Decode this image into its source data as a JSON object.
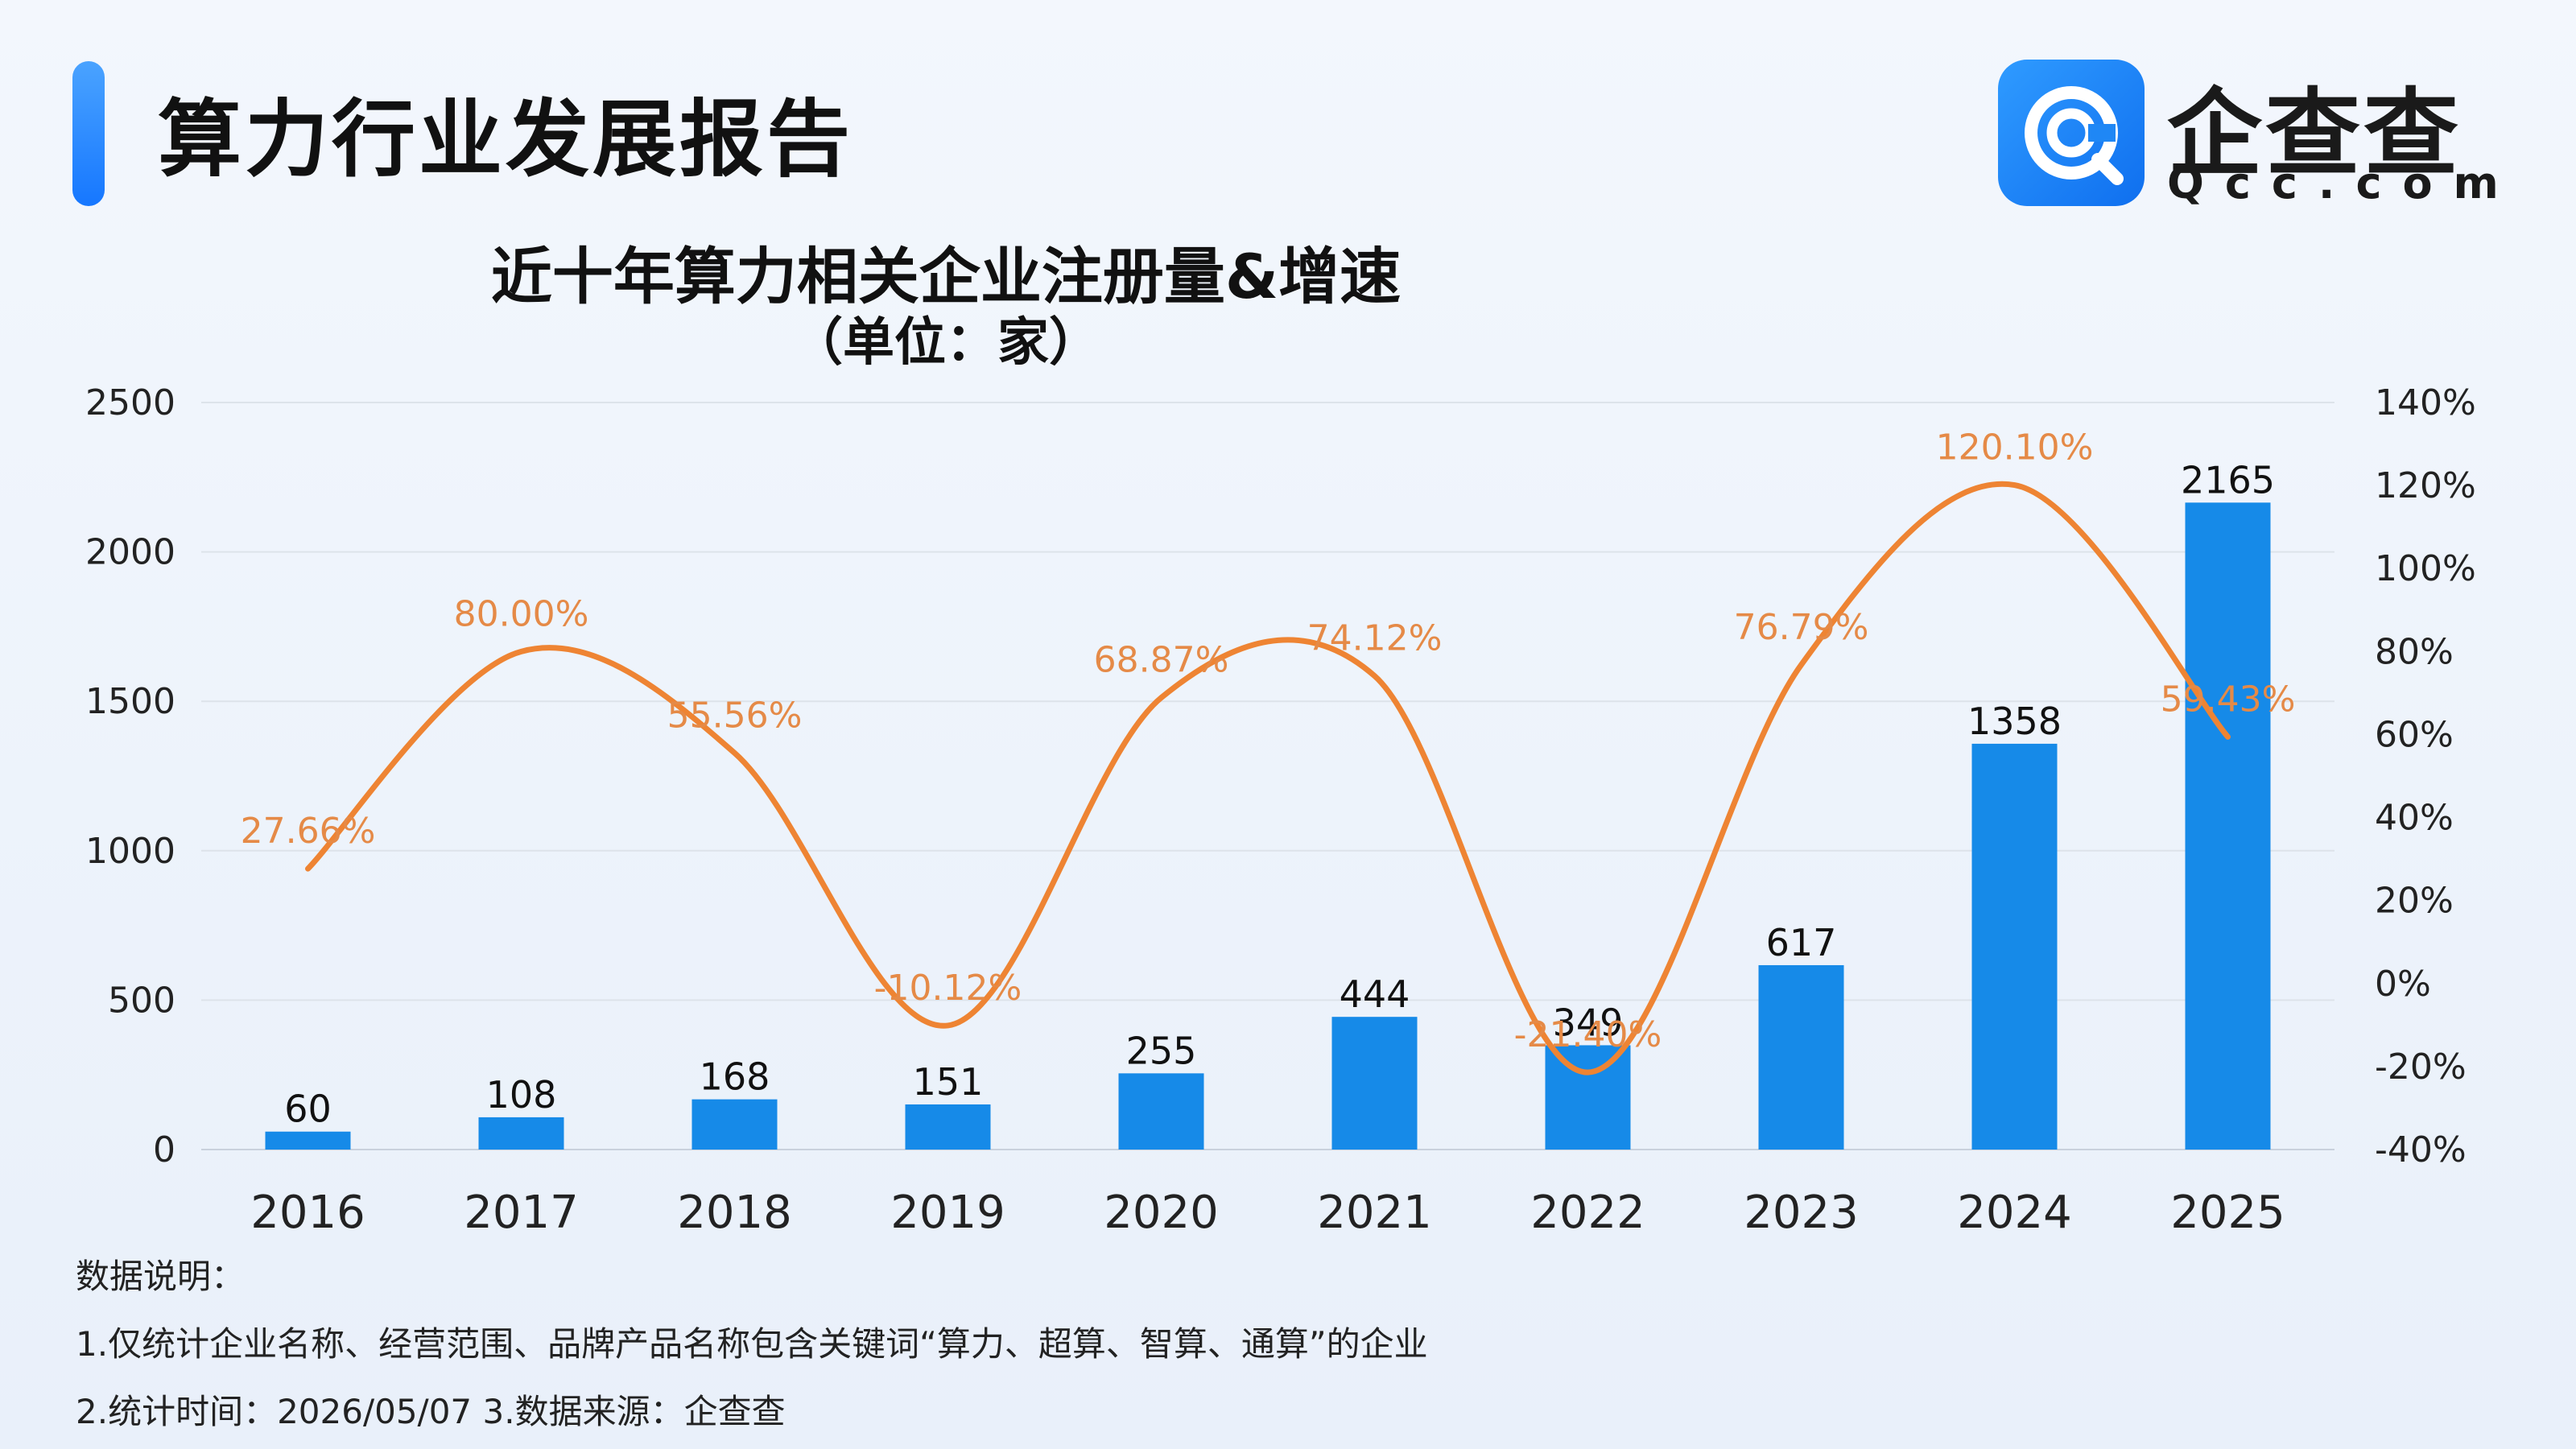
{
  "header": {
    "title": "算力行业发展报告",
    "logo": {
      "name": "企查查",
      "domain": "Qcc.com",
      "icon": "qcc-logo-icon",
      "color": "#1677ff"
    }
  },
  "chart_data": {
    "type": "bar",
    "title": "近十年算力相关企业注册量&增速",
    "subtitle": "（单位：家）",
    "categories": [
      "2016",
      "2017",
      "2018",
      "2019",
      "2020",
      "2021",
      "2022",
      "2023",
      "2024",
      "2025"
    ],
    "series": [
      {
        "type": "bar",
        "axis": "left",
        "color": "#168ae8",
        "values": [
          60,
          108,
          168,
          151,
          255,
          444,
          349,
          617,
          1358,
          2165
        ],
        "labels": [
          "60",
          "108",
          "168",
          "151",
          "255",
          "444",
          "349",
          "617",
          "1358",
          "2165"
        ]
      },
      {
        "type": "line",
        "axis": "right",
        "color": "#ee8433",
        "smooth": true,
        "values": [
          27.66,
          80.0,
          55.56,
          -10.12,
          68.87,
          74.12,
          -21.4,
          76.79,
          120.1,
          59.43
        ],
        "labels": [
          "27.66%",
          "80.00%",
          "55.56%",
          "-10.12%",
          "68.87%",
          "74.12%",
          "-21.40%",
          "76.79%",
          "120.10%",
          "59.43%"
        ]
      }
    ],
    "y_left": {
      "min": 0,
      "max": 2500,
      "ticks": [
        "0",
        "500",
        "1000",
        "1500",
        "2000",
        "2500"
      ]
    },
    "y_right": {
      "min": -40,
      "max": 140,
      "ticks": [
        "-40%",
        "-20%",
        "0%",
        "20%",
        "40%",
        "60%",
        "80%",
        "100%",
        "120%",
        "140%"
      ]
    },
    "grid": true,
    "legend": "none"
  },
  "notes": {
    "heading": "数据说明：",
    "line1": "1.仅统计企业名称、经营范围、品牌产品名称包含关键词“算力、超算、智算、通算”的企业",
    "line2": "2.统计时间：2026/05/07    3.数据来源：企查查"
  }
}
